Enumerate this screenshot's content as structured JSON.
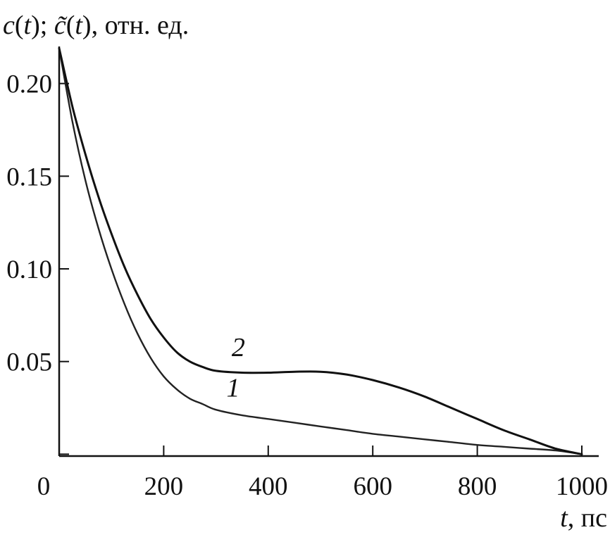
{
  "chart_data": {
    "type": "line",
    "ylabel": "c(t); c̃(t), отн. ед.",
    "ylabel_parts": {
      "c": "c",
      "t1": "t",
      "sep": "; ",
      "c_tilde": "c̃",
      "t2": "t",
      "unit": ", отн. ед."
    },
    "xlabel": "t, пс",
    "xlabel_parts": {
      "var": "t",
      "unit": ", пс"
    },
    "xlim": [
      0,
      1000
    ],
    "ylim": [
      -0.001,
      0.22
    ],
    "x_ticks": [
      0,
      200,
      400,
      600,
      800,
      1000
    ],
    "x_tick_labels": [
      "0",
      "200",
      "400",
      "600",
      "800",
      "1000"
    ],
    "y_ticks": [
      0,
      0.05,
      0.1,
      0.15,
      0.2
    ],
    "y_tick_labels": [
      "",
      "0.05",
      "0.10",
      "0.15",
      "0.20"
    ],
    "grid": false,
    "legend": "none",
    "series": [
      {
        "name": "1",
        "color": "#222222",
        "x": [
          0,
          25,
          50,
          75,
          100,
          125,
          150,
          175,
          200,
          225,
          250,
          275,
          300,
          350,
          400,
          450,
          500,
          550,
          600,
          650,
          700,
          750,
          800,
          850,
          900,
          950,
          1000
        ],
        "y": [
          0.219,
          0.18,
          0.148,
          0.122,
          0.1,
          0.081,
          0.065,
          0.052,
          0.042,
          0.035,
          0.03,
          0.027,
          0.024,
          0.021,
          0.019,
          0.017,
          0.015,
          0.013,
          0.011,
          0.0095,
          0.008,
          0.0065,
          0.005,
          0.004,
          0.003,
          0.002,
          0.0
        ]
      },
      {
        "name": "2",
        "color": "#111111",
        "x": [
          0,
          25,
          50,
          75,
          100,
          125,
          150,
          175,
          200,
          225,
          250,
          275,
          300,
          350,
          400,
          450,
          500,
          550,
          600,
          650,
          700,
          750,
          800,
          850,
          900,
          950,
          1000
        ],
        "y": [
          0.219,
          0.188,
          0.162,
          0.139,
          0.119,
          0.101,
          0.086,
          0.073,
          0.063,
          0.055,
          0.05,
          0.047,
          0.045,
          0.044,
          0.044,
          0.0445,
          0.0445,
          0.043,
          0.04,
          0.036,
          0.031,
          0.025,
          0.019,
          0.013,
          0.008,
          0.003,
          0.0
        ]
      }
    ],
    "annotations": [
      {
        "text": "2",
        "x": 330,
        "y": 0.053
      },
      {
        "text": "1",
        "x": 320,
        "y": 0.031
      }
    ]
  }
}
